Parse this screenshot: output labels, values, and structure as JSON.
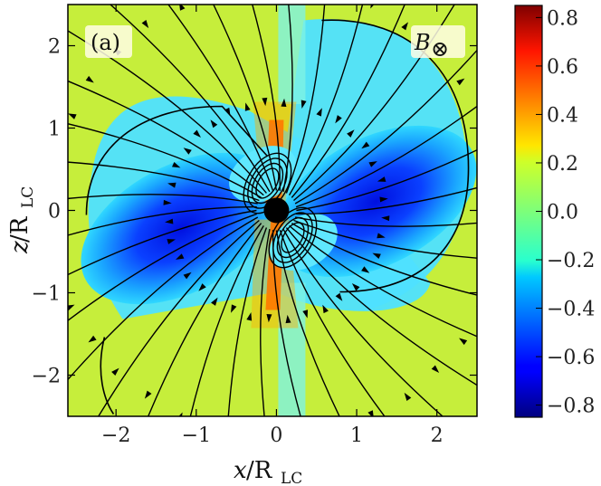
{
  "chart_data": {
    "type": "heatmap",
    "title": "",
    "panel_label": "(a)",
    "field_label": "B",
    "field_label_symbol": "⊗",
    "xlabel": "x",
    "xlabel_sub": "LC",
    "xlabel_prefix": "/R",
    "ylabel": "z",
    "ylabel_sub": "LC",
    "ylabel_prefix": "/R",
    "xlim": [
      -2.6,
      2.5
    ],
    "ylim": [
      -2.5,
      2.5
    ],
    "xticks": [
      -2,
      -1,
      0,
      1,
      2
    ],
    "xtick_labels": [
      "−2",
      "−1",
      "0",
      "1",
      "2"
    ],
    "yticks": [
      -2,
      -1,
      0,
      1,
      2
    ],
    "ytick_labels": [
      "−2",
      "−1",
      "0",
      "1",
      "2"
    ],
    "colorbar": {
      "vmin": -0.85,
      "vmax": 0.85,
      "ticks": [
        0.8,
        0.6,
        0.4,
        0.2,
        0.0,
        -0.2,
        -0.4,
        -0.6,
        -0.8
      ],
      "tick_labels": [
        "0.8",
        "0.6",
        "0.4",
        "0.2",
        "0.0",
        "−0.2",
        "−0.4",
        "−0.6",
        "−0.8"
      ],
      "colormap": "jet"
    },
    "star": {
      "x": 0.0,
      "y": 0.0,
      "radius": 0.2
    },
    "colors": {
      "star": "#000000",
      "streamline": "#000000",
      "frame": "#000000"
    }
  }
}
